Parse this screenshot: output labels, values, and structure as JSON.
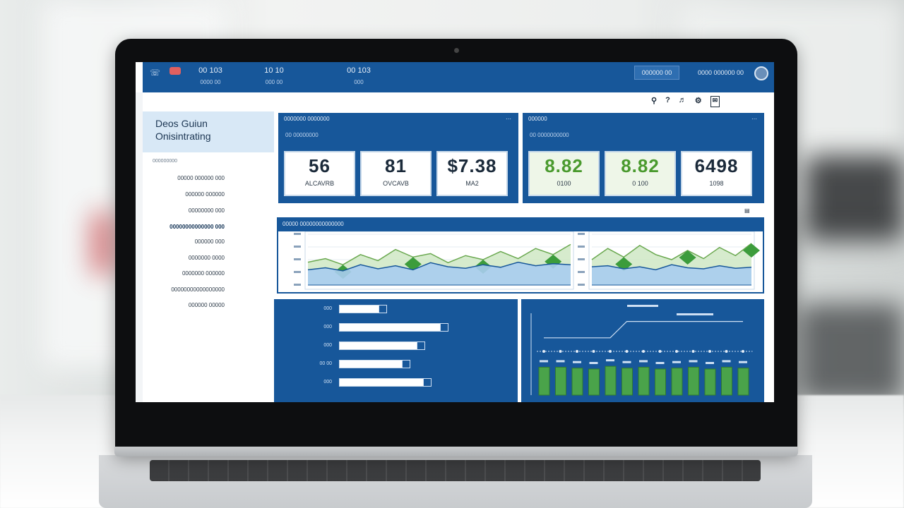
{
  "topbar": {
    "stats": [
      {
        "value": "00 103",
        "sub": "0000 00"
      },
      {
        "value": "10 10",
        "sub": "000 00"
      },
      {
        "value": "00 103",
        "sub": "000"
      }
    ],
    "action_button": "000000 00",
    "user_label": "0000 000000 00"
  },
  "toolbar": {
    "icons": [
      "search-icon",
      "help-icon",
      "volume-icon",
      "settings-icon",
      "mail-icon"
    ]
  },
  "sidebar": {
    "title_line1": "Deos Guiun",
    "title_line2": "Onisintrating",
    "section": "000000000",
    "items": [
      {
        "label": "00000 000000 000"
      },
      {
        "label": "000000 000000"
      },
      {
        "label": "00000000 000"
      },
      {
        "label": "00000000000000 000",
        "active": true
      },
      {
        "label": "000000 000"
      },
      {
        "label": "0000000 0000"
      },
      {
        "label": "0000000 000000"
      },
      {
        "label": "00000000000000000"
      },
      {
        "label": "000000 00000"
      }
    ]
  },
  "kpi_left": {
    "title": "0000000 0000000",
    "subtitle": "00 00000000",
    "cards": [
      {
        "value": "56",
        "label": "ALCAVRB"
      },
      {
        "value": "81",
        "label": "OVCAVB"
      },
      {
        "value": "$7.38",
        "label": "MA2"
      }
    ]
  },
  "kpi_right": {
    "title": "000000",
    "subtitle": "00 0000000000",
    "cards": [
      {
        "value": "8.82",
        "label": "0100",
        "green": true
      },
      {
        "value": "8.82",
        "label": "0 100",
        "green": true
      },
      {
        "value": "6498",
        "label": "1098"
      }
    ]
  },
  "trend_section": {
    "title": "00000 00000000000000"
  },
  "chart_data": [
    {
      "type": "area",
      "title": "",
      "series": [
        {
          "values": [
            45,
            52,
            40,
            60,
            48,
            70,
            55,
            62,
            44,
            58,
            50,
            66,
            52,
            72,
            60,
            80
          ]
        },
        {
          "values": [
            30,
            34,
            28,
            40,
            32,
            38,
            30,
            44,
            36,
            33,
            40,
            35,
            45,
            38,
            42,
            40
          ]
        }
      ]
    },
    {
      "type": "area",
      "title": "",
      "series": [
        {
          "values": [
            50,
            72,
            55,
            78,
            60,
            50,
            68,
            52,
            74,
            58,
            82
          ]
        },
        {
          "values": [
            36,
            38,
            32,
            36,
            30,
            40,
            34,
            32,
            38,
            33,
            35
          ]
        }
      ]
    },
    {
      "type": "bar",
      "orientation": "horizontal",
      "categories": [
        "000",
        "000",
        "000",
        "00 00",
        "000"
      ],
      "values": [
        38,
        86,
        68,
        56,
        73
      ]
    },
    {
      "type": "bar",
      "title": "",
      "series": [
        {
          "values": [
            62,
            62,
            60,
            58,
            64,
            60,
            62,
            58,
            60,
            62,
            58,
            62,
            60
          ]
        },
        {
          "values": [
            70,
            70,
            70,
            70,
            70,
            90,
            90,
            90,
            90,
            90,
            90,
            90,
            90
          ]
        }
      ]
    }
  ]
}
